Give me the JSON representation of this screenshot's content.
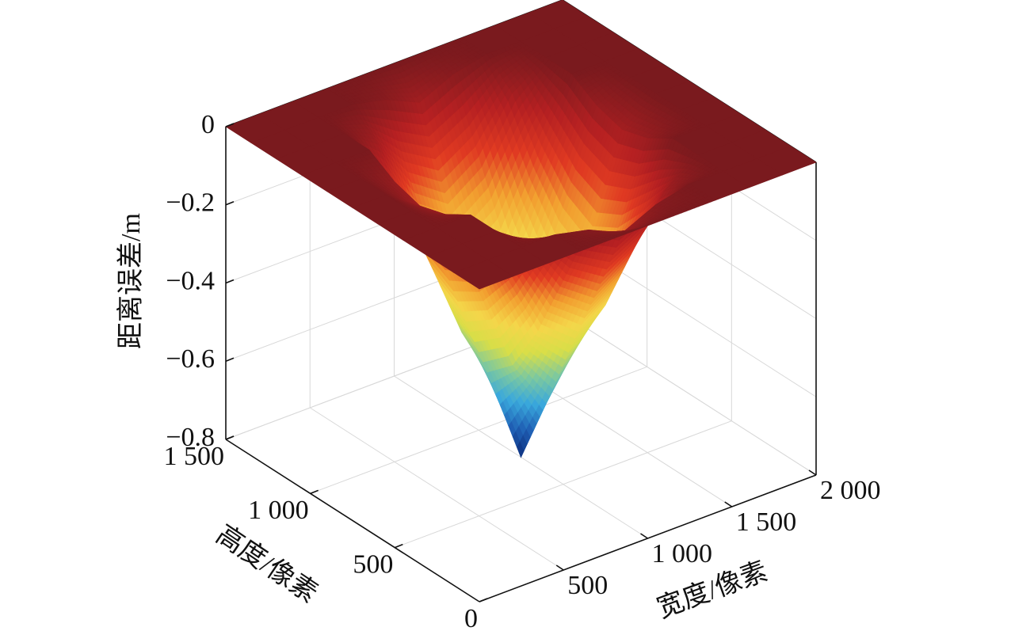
{
  "chart_data": {
    "type": "surface",
    "xlabel": "宽度/像素",
    "ylabel": "高度/像素",
    "zlabel": "距离误差/m",
    "surface": {
      "x": [
        0,
        200,
        400,
        600,
        800,
        1000,
        1200,
        1400,
        1600,
        1800,
        2000
      ],
      "y": [
        0,
        150,
        300,
        450,
        600,
        750,
        900,
        1050,
        1200,
        1350,
        1500
      ],
      "z": [
        [
          0,
          0,
          0,
          0,
          0,
          0,
          0,
          0,
          0,
          0,
          0
        ],
        [
          0,
          0,
          0,
          0,
          -0.02,
          -0.06,
          -0.02,
          0,
          0,
          0,
          0
        ],
        [
          0,
          0,
          0,
          -0.06,
          -0.19,
          -0.25,
          -0.19,
          -0.06,
          0,
          0,
          0
        ],
        [
          0,
          0,
          0,
          -0.18,
          -0.36,
          -0.43,
          -0.36,
          -0.18,
          0,
          0,
          0
        ],
        [
          0,
          0,
          -0.04,
          -0.27,
          -0.49,
          -0.62,
          -0.49,
          -0.27,
          -0.04,
          0,
          0
        ],
        [
          0,
          0,
          -0.06,
          -0.31,
          -0.55,
          -0.8,
          -0.55,
          -0.31,
          -0.06,
          0,
          0
        ],
        [
          0,
          0,
          -0.04,
          -0.27,
          -0.49,
          -0.62,
          -0.49,
          -0.27,
          -0.04,
          0,
          0
        ],
        [
          0,
          0,
          0,
          -0.18,
          -0.36,
          -0.43,
          -0.36,
          -0.18,
          0,
          0,
          0
        ],
        [
          0,
          0,
          0,
          -0.06,
          -0.19,
          -0.25,
          -0.19,
          -0.06,
          0,
          0,
          0
        ],
        [
          0,
          0,
          0,
          0,
          -0.02,
          -0.06,
          -0.02,
          0,
          0,
          0,
          0
        ],
        [
          0,
          0,
          0,
          0,
          0,
          0,
          0,
          0,
          0,
          0,
          0
        ]
      ]
    },
    "colormap": [
      "#0b2a78",
      "#1f5fb4",
      "#3aa8dc",
      "#7cc8a0",
      "#d8de48",
      "#f4d64a",
      "#f2a030",
      "#e03a22",
      "#b52022",
      "#7a1a1e"
    ],
    "xlim": [
      0,
      2000
    ],
    "ylim": [
      0,
      1500
    ],
    "zlim": [
      -0.8,
      0
    ],
    "xticks": [
      500,
      {
        "value": 1000,
        "label": "1 000"
      },
      {
        "value": 1500,
        "label": "1 500"
      },
      {
        "value": 2000,
        "label": "2 000"
      }
    ],
    "yticks": [
      0,
      500,
      {
        "value": 1000,
        "label": "1 000"
      },
      {
        "value": 1500,
        "label": "1 500"
      }
    ],
    "zticks": [
      {
        "value": -0.8,
        "label": "−0.8"
      },
      {
        "value": -0.6,
        "label": "−0.6"
      },
      {
        "value": -0.4,
        "label": "−0.4"
      },
      {
        "value": -0.2,
        "label": "−0.2"
      },
      0
    ],
    "grid": true
  }
}
